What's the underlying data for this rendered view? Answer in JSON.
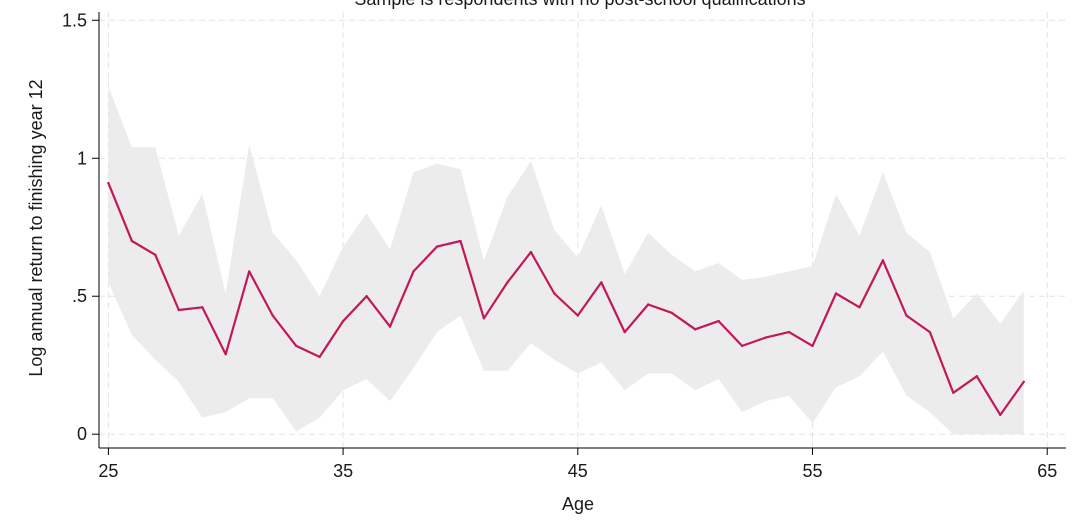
{
  "chart_data": {
    "type": "line",
    "title": "Sample is respondents with no post-school qualifications",
    "xlabel": "Age",
    "ylabel": "Log annual return to finishing year 12",
    "xlim": [
      24.6,
      65.8
    ],
    "ylim": [
      -0.05,
      1.53
    ],
    "xticks": [
      25,
      35,
      45,
      55,
      65
    ],
    "xtick_labels": [
      "25",
      "35",
      "45",
      "55",
      "65"
    ],
    "yticks": [
      0,
      0.5,
      1,
      1.5
    ],
    "ytick_labels": [
      "0",
      ".5",
      "1",
      "1.5"
    ],
    "grid": true,
    "legend": "none",
    "colors": {
      "line": "#c2185b",
      "band": "#ececec",
      "grid": "#e3e3e3",
      "axis": "#000000"
    },
    "x": [
      25,
      26,
      27,
      28,
      29,
      30,
      31,
      32,
      33,
      34,
      35,
      36,
      37,
      38,
      39,
      40,
      41,
      42,
      43,
      44,
      45,
      46,
      47,
      48,
      49,
      50,
      51,
      52,
      53,
      54,
      55,
      56,
      57,
      58,
      59,
      60,
      61,
      62,
      63,
      64
    ],
    "series": [
      {
        "values": [
          0.91,
          0.7,
          0.65,
          0.45,
          0.46,
          0.29,
          0.59,
          0.43,
          0.32,
          0.28,
          0.41,
          0.5,
          0.39,
          0.59,
          0.68,
          0.7,
          0.42,
          0.55,
          0.66,
          0.51,
          0.43,
          0.55,
          0.37,
          0.47,
          0.44,
          0.38,
          0.41,
          0.32,
          0.35,
          0.37,
          0.32,
          0.51,
          0.46,
          0.63,
          0.43,
          0.37,
          0.15,
          0.21,
          0.07,
          0.19
        ]
      }
    ],
    "confidence_band": {
      "upper": [
        1.26,
        1.04,
        1.04,
        0.72,
        0.87,
        0.51,
        1.05,
        0.73,
        0.63,
        0.5,
        0.68,
        0.8,
        0.67,
        0.95,
        0.98,
        0.96,
        0.63,
        0.86,
        0.99,
        0.74,
        0.64,
        0.83,
        0.58,
        0.73,
        0.65,
        0.59,
        0.62,
        0.56,
        0.57,
        0.59,
        0.61,
        0.87,
        0.72,
        0.95,
        0.73,
        0.66,
        0.42,
        0.51,
        0.4,
        0.52
      ],
      "lower": [
        0.55,
        0.36,
        0.27,
        0.19,
        0.06,
        0.08,
        0.13,
        0.13,
        0.01,
        0.06,
        0.16,
        0.2,
        0.12,
        0.24,
        0.37,
        0.43,
        0.23,
        0.23,
        0.33,
        0.27,
        0.22,
        0.26,
        0.16,
        0.22,
        0.22,
        0.16,
        0.2,
        0.08,
        0.12,
        0.14,
        0.04,
        0.17,
        0.21,
        0.3,
        0.14,
        0.08,
        0.0,
        0.0,
        0.0,
        0.0
      ]
    }
  }
}
